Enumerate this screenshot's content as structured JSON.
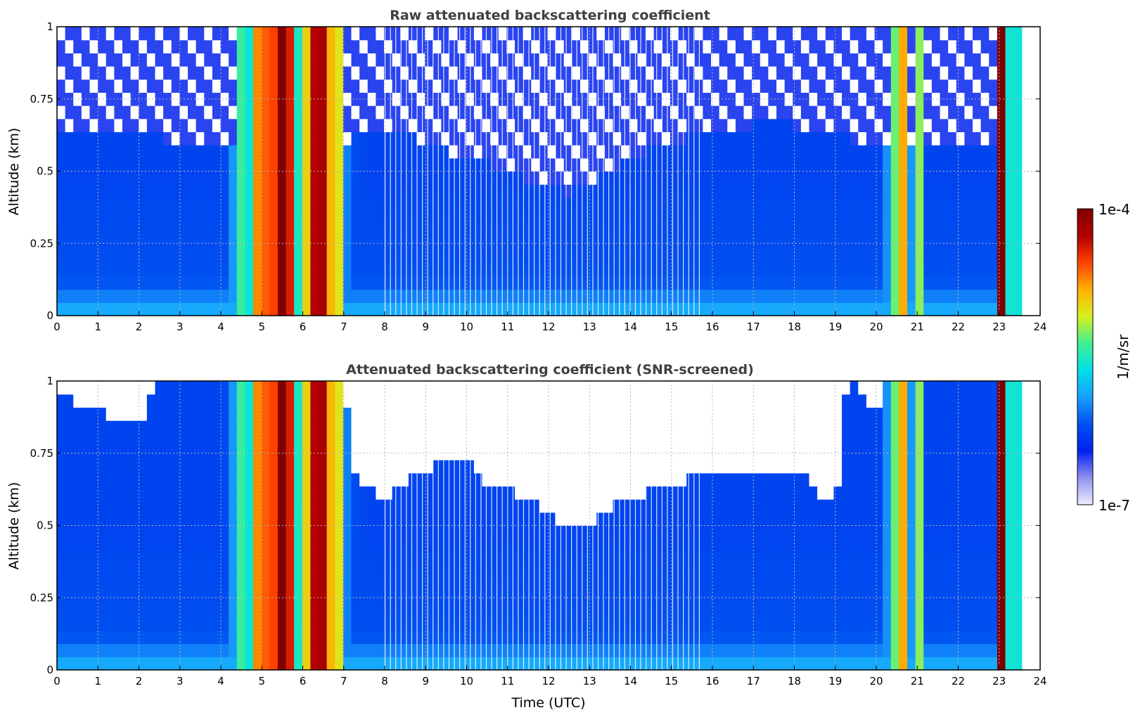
{
  "chart_data": [
    {
      "type": "heatmap",
      "title": "Raw attenuated backscattering coefficient",
      "xlabel": "",
      "ylabel": "Altitude (km)",
      "xlim": [
        0,
        24
      ],
      "ylim": [
        0,
        1
      ],
      "xticks": [
        "0",
        "1",
        "2",
        "3",
        "4",
        "5",
        "6",
        "7",
        "8",
        "9",
        "10",
        "11",
        "12",
        "13",
        "14",
        "15",
        "16",
        "17",
        "18",
        "19",
        "20",
        "21",
        "22",
        "23",
        "24"
      ],
      "yticks": [
        "0",
        "0.25",
        "0.5",
        "0.75",
        "1"
      ],
      "grid": true,
      "data_end_time": 23.55,
      "noise_floor_km": [
        [
          0,
          0.62
        ],
        [
          2,
          0.62
        ],
        [
          4,
          0.6
        ],
        [
          6,
          0.6
        ],
        [
          7,
          0.6
        ],
        [
          8,
          0.65
        ],
        [
          9,
          0.6
        ],
        [
          10,
          0.55
        ],
        [
          11,
          0.5
        ],
        [
          12,
          0.45
        ],
        [
          12.5,
          0.43
        ],
        [
          13,
          0.46
        ],
        [
          14,
          0.55
        ],
        [
          15,
          0.6
        ],
        [
          16,
          0.63
        ],
        [
          17,
          0.66
        ],
        [
          18,
          0.66
        ],
        [
          19,
          0.62
        ],
        [
          20,
          0.6
        ],
        [
          22,
          0.6
        ],
        [
          23.55,
          0.6
        ]
      ]
    },
    {
      "type": "heatmap",
      "title": "Attenuated backscattering coefficient (SNR-screened)",
      "xlabel": "Time (UTC)",
      "ylabel": "Altitude (km)",
      "xlim": [
        0,
        24
      ],
      "ylim": [
        0,
        1
      ],
      "xticks": [
        "0",
        "1",
        "2",
        "3",
        "4",
        "5",
        "6",
        "7",
        "8",
        "9",
        "10",
        "11",
        "12",
        "13",
        "14",
        "15",
        "16",
        "17",
        "18",
        "19",
        "20",
        "21",
        "22",
        "23",
        "24"
      ],
      "yticks": [
        "0",
        "0.25",
        "0.5",
        "0.75",
        "1"
      ],
      "grid": true,
      "data_end_time": 23.55,
      "screen_top_km": [
        [
          0,
          0.95
        ],
        [
          1,
          0.9
        ],
        [
          2,
          0.85
        ],
        [
          2.5,
          1.0
        ],
        [
          4.5,
          1.0
        ],
        [
          7.0,
          1.0
        ],
        [
          7.3,
          0.68
        ],
        [
          8,
          0.6
        ],
        [
          9,
          0.7
        ],
        [
          10,
          0.74
        ],
        [
          10.5,
          0.65
        ],
        [
          11,
          0.62
        ],
        [
          12,
          0.55
        ],
        [
          12.5,
          0.5
        ],
        [
          13,
          0.5
        ],
        [
          13.5,
          0.56
        ],
        [
          14,
          0.6
        ],
        [
          15,
          0.65
        ],
        [
          16,
          0.67
        ],
        [
          17,
          0.7
        ],
        [
          18,
          0.7
        ],
        [
          19,
          0.55
        ],
        [
          19.3,
          1.0
        ],
        [
          20,
          0.9
        ],
        [
          20.3,
          1.0
        ],
        [
          23.55,
          1.0
        ]
      ]
    }
  ],
  "colorbar": {
    "label": "1/m/sr",
    "max_label": "1e-4",
    "min_label": "1e-7",
    "colors": [
      "#eeeeff",
      "#9090f0",
      "#0020f0",
      "#0050f0",
      "#1aa0ff",
      "#00e0e8",
      "#40f090",
      "#d8f020",
      "#ffb000",
      "#ff4000",
      "#b00000",
      "#800000"
    ]
  }
}
